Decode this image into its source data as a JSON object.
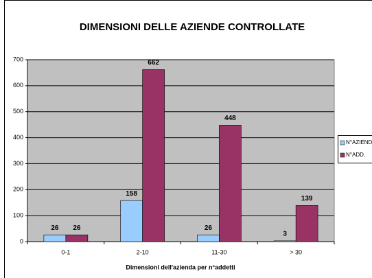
{
  "chart_data": {
    "type": "bar",
    "title": "DIMENSIONI DELLE AZIENDE CONTROLLATE",
    "x_label": "Dimensioni dell'azienda per n°addetti",
    "categories": [
      "0-1",
      "2-10",
      "11-30",
      "> 30"
    ],
    "series": [
      {
        "name": "N°AZIENDE",
        "color": "#99ccff",
        "values": [
          26,
          158,
          26,
          3
        ]
      },
      {
        "name": "N°ADD.",
        "color": "#993366",
        "values": [
          26,
          662,
          448,
          139
        ]
      }
    ],
    "ylim": [
      0,
      700
    ],
    "yticks": [
      0,
      100,
      200,
      300,
      400,
      500,
      600,
      700
    ],
    "grid": true,
    "legend": "right"
  }
}
